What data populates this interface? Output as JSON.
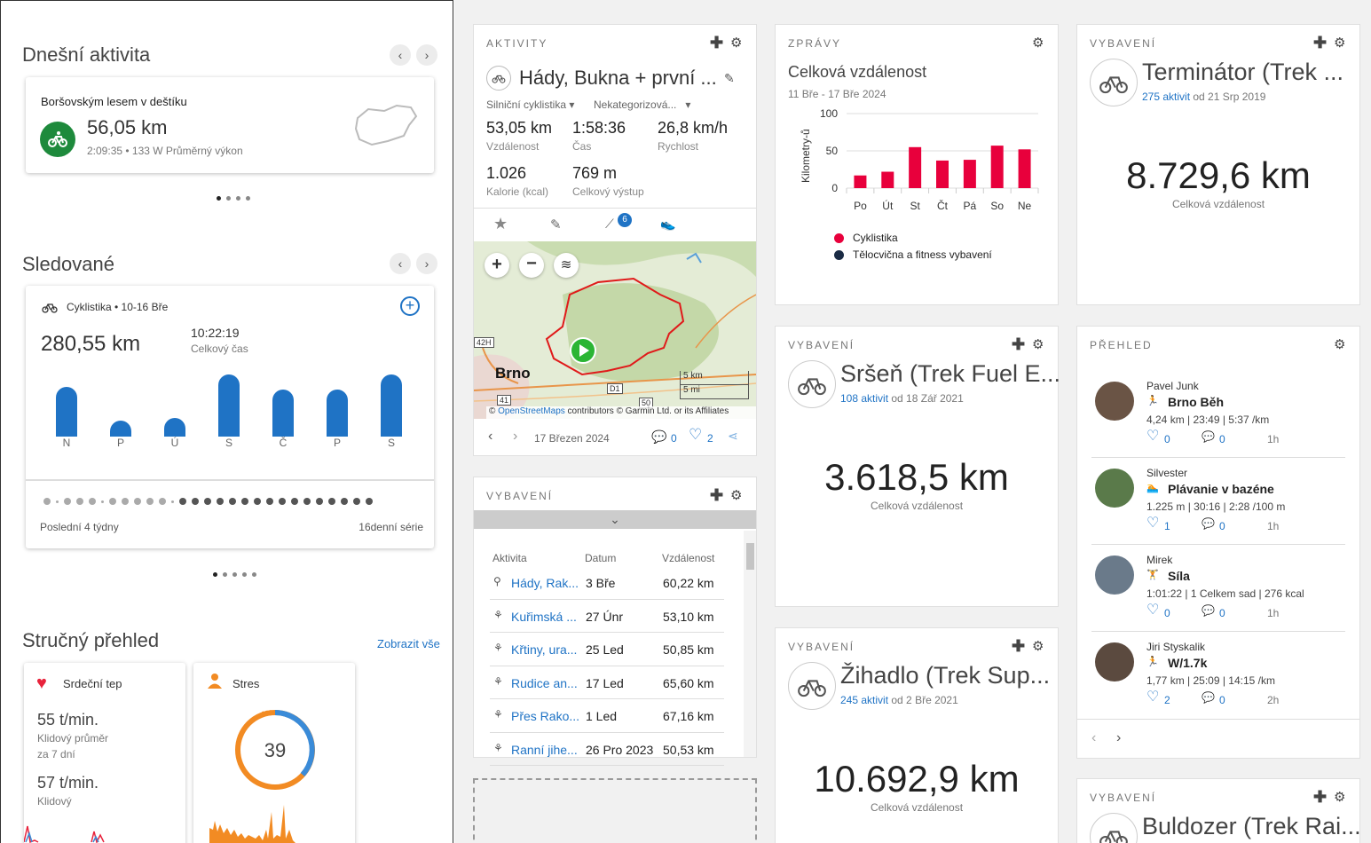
{
  "left": {
    "today": {
      "title": "Dnešní aktivita",
      "activity_name": "Boršovským lesem v deštíku",
      "distance": "56,05 km",
      "meta": "2:09:35 • 133 W Průměrný výkon"
    },
    "tracked": {
      "title": "Sledované",
      "subtitle": "Cyklistika • 10-16 Bře",
      "distance": "280,55 km",
      "time": "10:22:19",
      "time_label": "Celkový čas",
      "days": [
        "N",
        "P",
        "Ú",
        "S",
        "Č",
        "P",
        "S"
      ],
      "day_values": [
        0.8,
        0.25,
        0.3,
        1.0,
        0.75,
        0.75,
        1.0
      ],
      "footer_left": "Poslední 4 týdny",
      "footer_right": "16denní série"
    },
    "summary": {
      "title": "Stručný přehled",
      "show_all": "Zobrazit vše",
      "heart": {
        "title": "Srdeční tep",
        "value1": "55 t/min.",
        "label1a": "Klidový průměr",
        "label1b": "za 7 dní",
        "value2": "57 t/min.",
        "label2": "Klidový"
      },
      "stress": {
        "title": "Stres",
        "value": "39"
      }
    }
  },
  "activities": {
    "cap": "AKTIVITY",
    "title": "Hády, Bukna + první ...",
    "type": "Silniční cyklistika",
    "category": "Nekategorizová...",
    "stats": [
      {
        "value": "53,05 km",
        "label": "Vzdálenost"
      },
      {
        "value": "1:58:36",
        "label": "Čas"
      },
      {
        "value": "26,8 km/h",
        "label": "Rychlost"
      },
      {
        "value": "1.026",
        "label": "Kalorie (kcal)"
      },
      {
        "value": "769 m",
        "label": "Celkový výstup"
      }
    ],
    "badge": "6",
    "map": {
      "city": "Brno",
      "scale_km": "5 km",
      "scale_mi": "5 mi",
      "road1": "42H",
      "road2": "41",
      "road3": "D1",
      "road4": "50",
      "attrib_pre": "©",
      "attrib_link": "OpenStreetMaps",
      "attrib_post": "contributors © Garmin Ltd. or its Affiliates"
    },
    "date": "17 Březen 2024",
    "comments": "0",
    "likes": "2"
  },
  "gear_table": {
    "cap": "VYBAVENÍ",
    "headers": [
      "Aktivita",
      "Datum",
      "Vzdálenost"
    ],
    "rows": [
      {
        "name": "Hády, Rak...",
        "date": "3 Bře",
        "dist": "60,22 km"
      },
      {
        "name": "Kuřimská ...",
        "date": "27 Únr",
        "dist": "53,10 km"
      },
      {
        "name": "Křtiny, ura...",
        "date": "25 Led",
        "dist": "50,85 km"
      },
      {
        "name": "Rudice an...",
        "date": "17 Led",
        "dist": "65,60 km"
      },
      {
        "name": "Přes Rako...",
        "date": "1 Led",
        "dist": "67,16 km"
      },
      {
        "name": "Ranní jihe...",
        "date": "26 Pro 2023",
        "dist": "50,53 km"
      }
    ]
  },
  "reports": {
    "cap": "ZPRÁVY",
    "title": "Celková vzdálenost",
    "range": "11 Bře - 17 Bře 2024",
    "legend1": "Cyklistika",
    "legend2": "Tělocvična a fitness vybavení"
  },
  "chart_data": {
    "type": "bar",
    "categories": [
      "Po",
      "Út",
      "St",
      "Čt",
      "Pá",
      "So",
      "Ne"
    ],
    "series": [
      {
        "name": "Cyklistika",
        "values": [
          17,
          22,
          55,
          37,
          38,
          57,
          52
        ]
      }
    ],
    "ylabel": "Kilometry-ů",
    "yticks": [
      "100",
      "50",
      "0"
    ],
    "ylim": [
      0,
      100
    ],
    "colors": {
      "cycling": "#e8003c",
      "gym": "#1a2b44"
    }
  },
  "gear_cards": [
    {
      "cap": "VYBAVENÍ",
      "name": "Terminátor (Trek ...",
      "count_link": "275 aktivit",
      "since": "od 21 Srp 2019",
      "total": "8.729,6 km",
      "total_label": "Celková vzdálenost"
    },
    {
      "cap": "VYBAVENÍ",
      "name": "Sršeň (Trek Fuel E...",
      "count_link": "108 aktivit",
      "since": "od 18 Zář 2021",
      "total": "3.618,5 km",
      "total_label": "Celková vzdálenost"
    },
    {
      "cap": "VYBAVENÍ",
      "name": "Žihadlo (Trek Sup...",
      "count_link": "245 aktivit",
      "since": "od 2 Bře 2021",
      "total": "10.692,9 km",
      "total_label": "Celková vzdálenost"
    },
    {
      "cap": "VYBAVENÍ",
      "name": "Buldozer (Trek Rai..."
    }
  ],
  "feed": {
    "cap": "PŘEHLED",
    "items": [
      {
        "user": "Pavel Junk",
        "title": "Brno Běh",
        "stats": "4,24 km | 23:49 | 5:37 /km",
        "likes": "0",
        "comments": "0",
        "time": "1h"
      },
      {
        "user": "Silvester",
        "title": "Plávanie v bazéne",
        "stats": "1.225 m | 30:16 | 2:28 /100 m",
        "likes": "1",
        "comments": "0",
        "time": "1h"
      },
      {
        "user": "Mirek",
        "title": "Síla",
        "stats": "1:01:22 | 1 Celkem sad | 276 kcal",
        "likes": "0",
        "comments": "0",
        "time": "1h"
      },
      {
        "user": "Jiri Styskalik",
        "title": "W/1.7k",
        "stats": "1,77 km | 25:09 | 14:15 /km",
        "likes": "2",
        "comments": "0",
        "time": "2h"
      }
    ]
  }
}
